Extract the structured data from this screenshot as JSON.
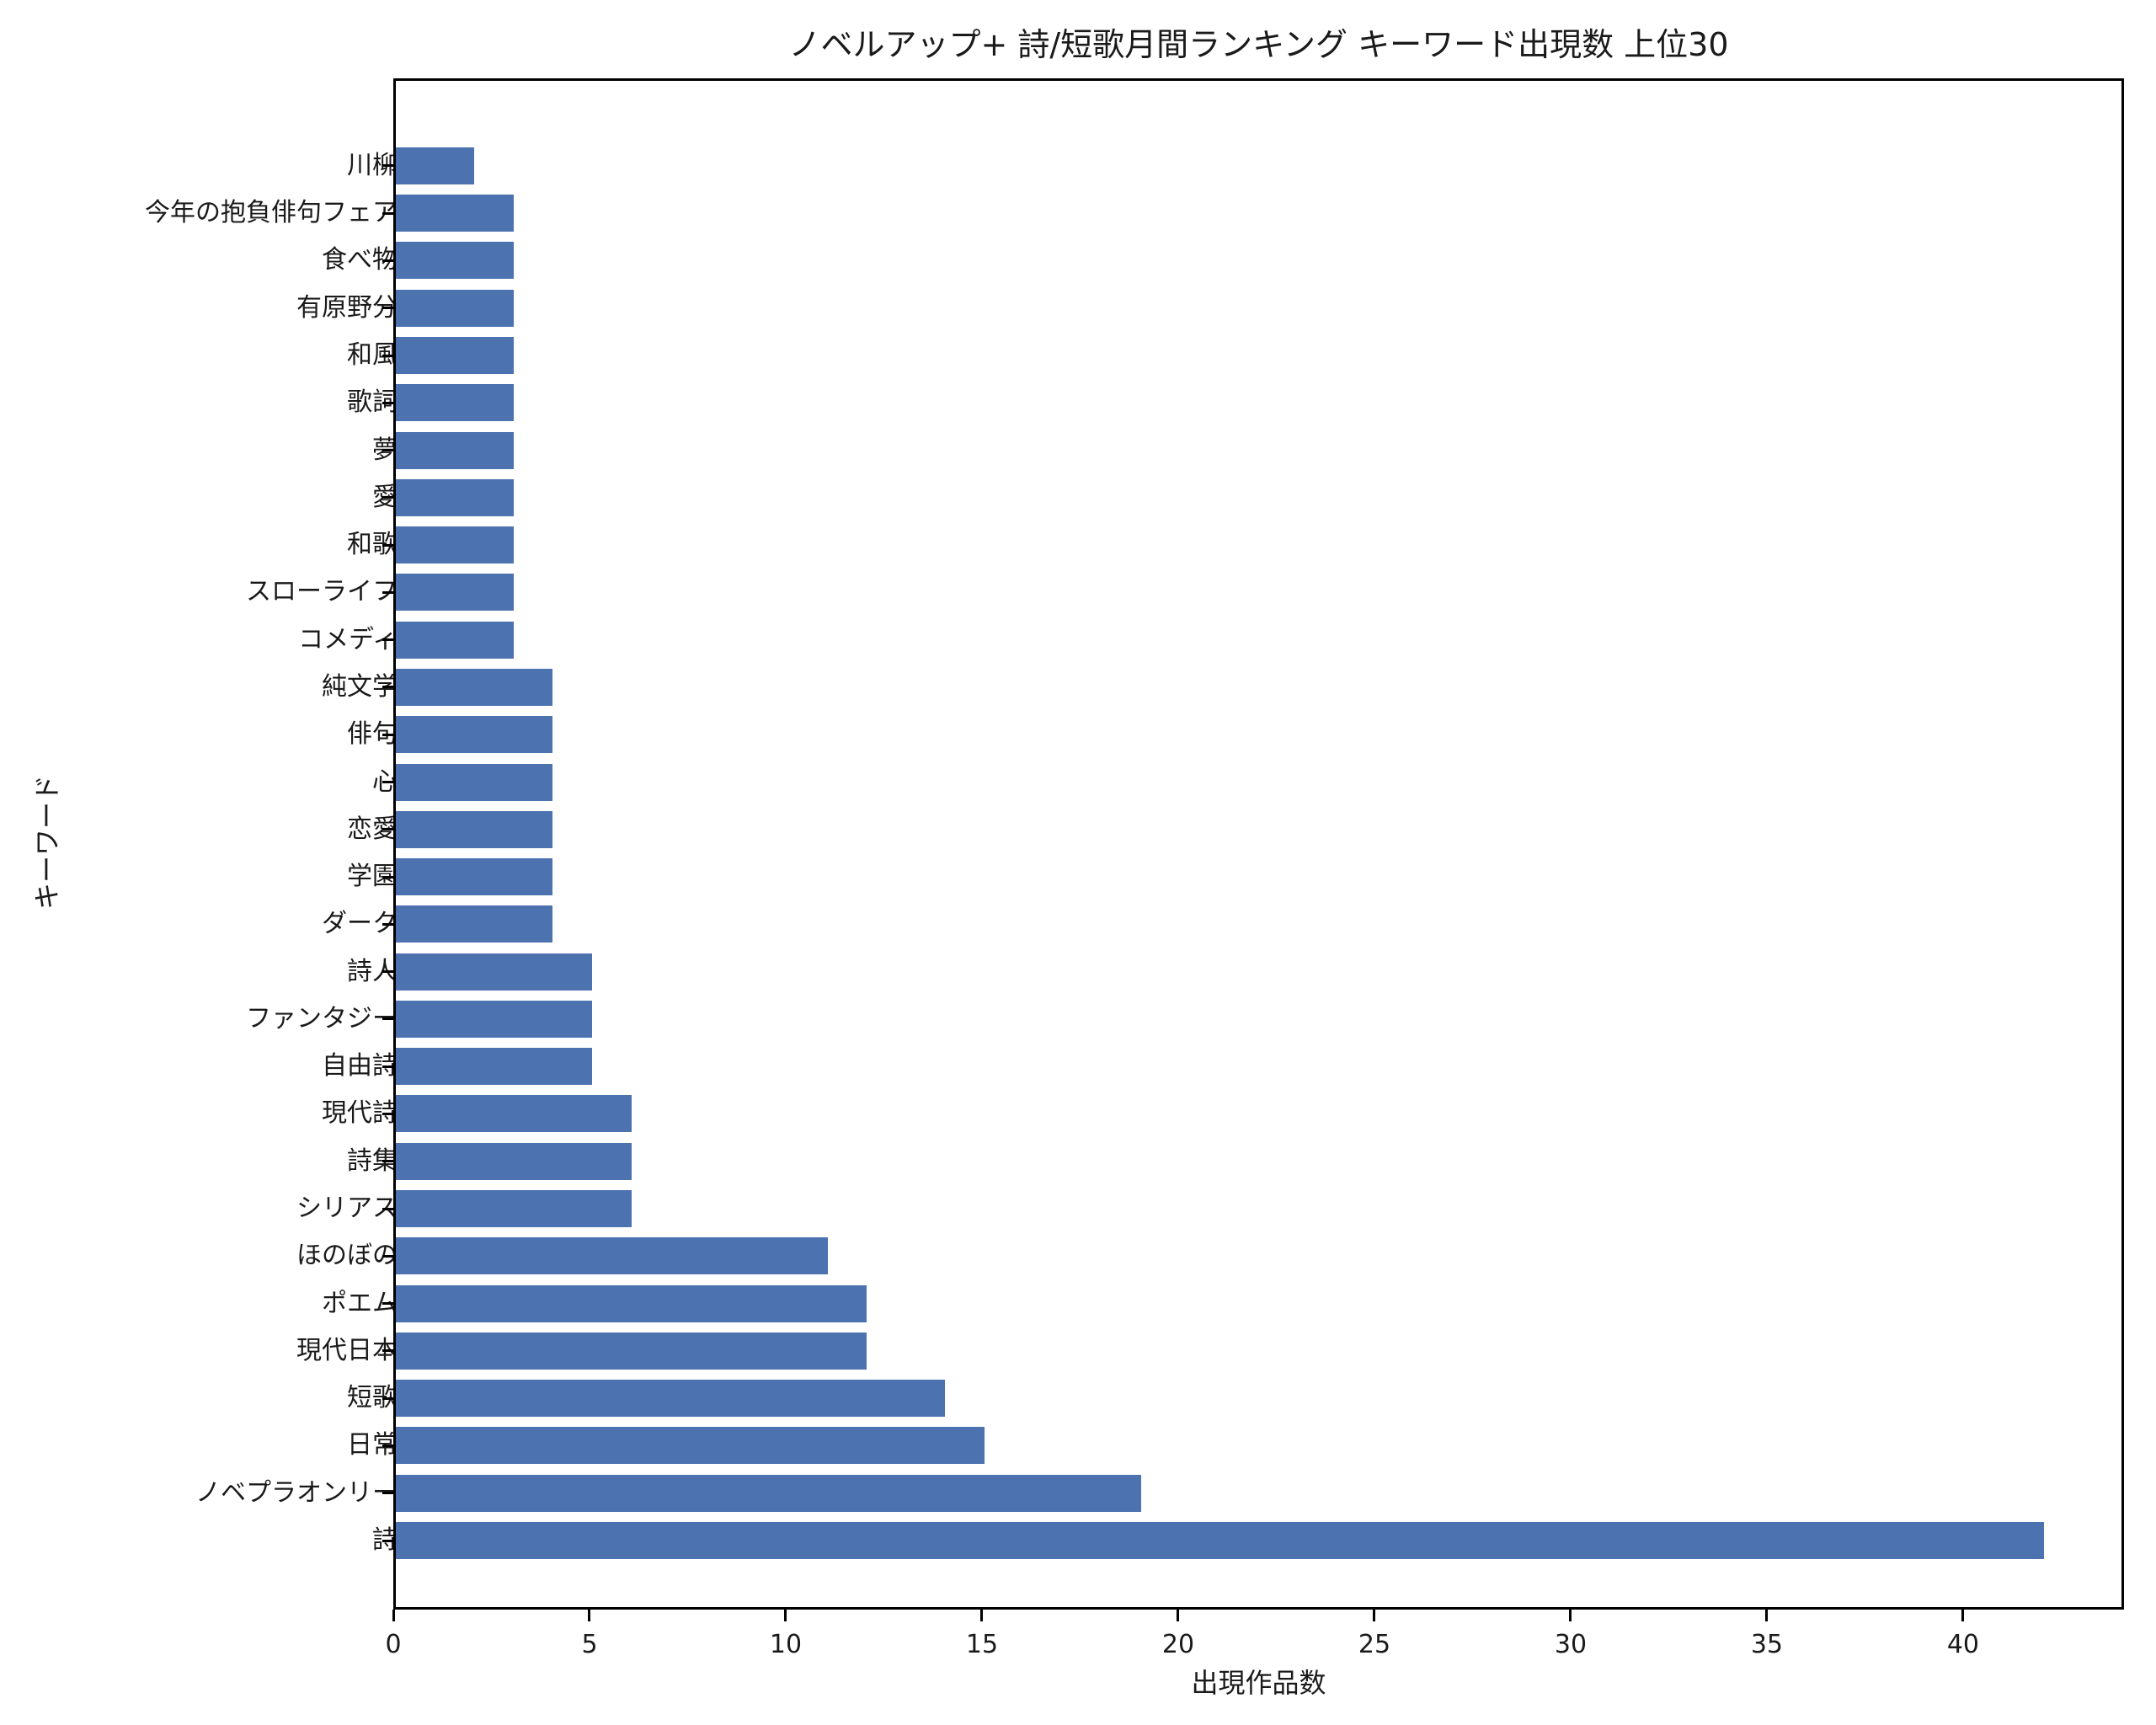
{
  "chart_data": {
    "type": "bar",
    "orientation": "horizontal",
    "title": "ノベルアップ+ 詩/短歌月間ランキング キーワード出現数 上位30",
    "xlabel": "出現作品数",
    "ylabel": "キーワード",
    "xlim": [
      0,
      44.1
    ],
    "xticks": [
      0,
      5,
      10,
      15,
      20,
      25,
      30,
      35,
      40
    ],
    "grid": false,
    "legend": null,
    "color": "#4c72b0",
    "categories": [
      "詩",
      "ノベプラオンリー",
      "日常",
      "短歌",
      "現代日本",
      "ポエム",
      "ほのぼの",
      "シリアス",
      "詩集",
      "現代詩",
      "自由詩",
      "ファンタジー",
      "詩人",
      "ダーク",
      "学園",
      "恋愛",
      "心",
      "俳句",
      "純文学",
      "コメディ",
      "スローライフ",
      "和歌",
      "愛",
      "夢",
      "歌詞",
      "和風",
      "有原野分",
      "食べ物",
      "今年の抱負俳句フェア",
      "川柳"
    ],
    "values": [
      42,
      19,
      15,
      14,
      12,
      12,
      11,
      6,
      6,
      6,
      5,
      5,
      5,
      4,
      4,
      4,
      4,
      4,
      4,
      3,
      3,
      3,
      3,
      3,
      3,
      3,
      3,
      3,
      3,
      2
    ]
  }
}
